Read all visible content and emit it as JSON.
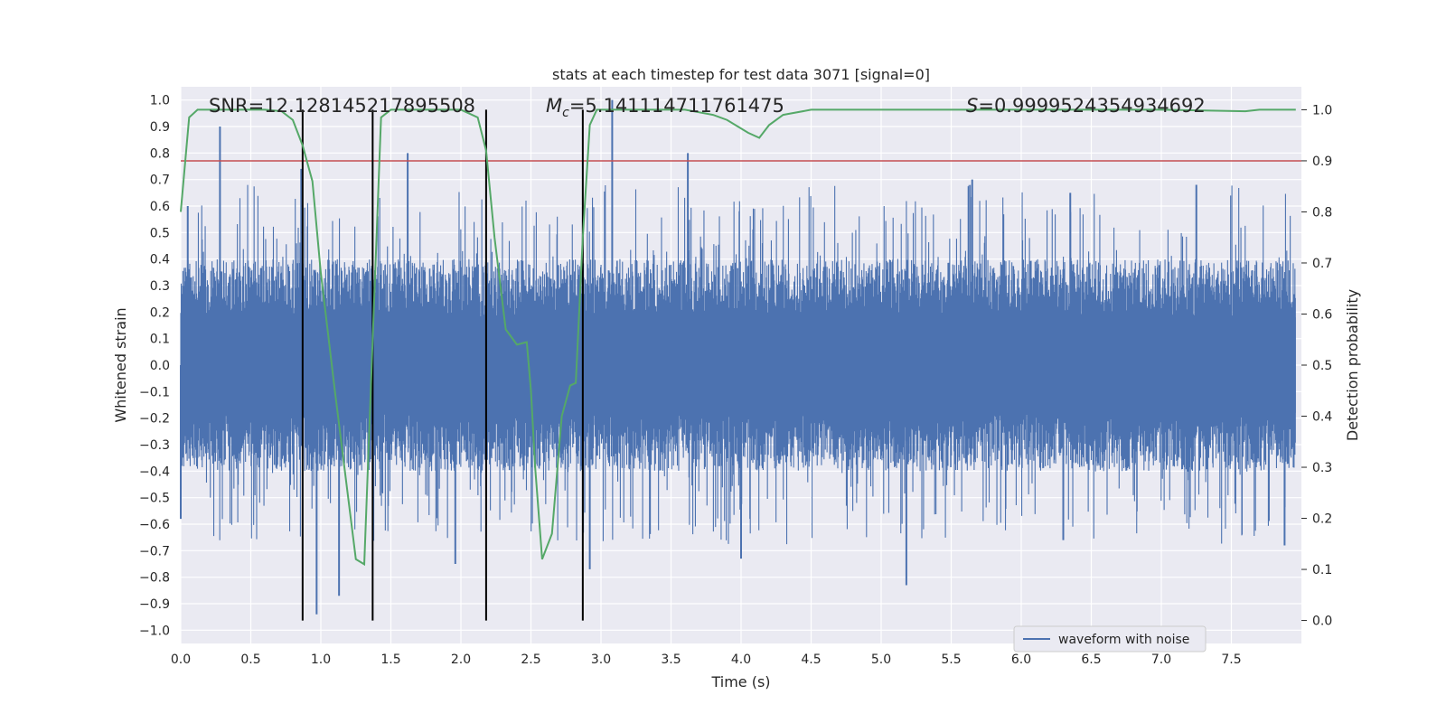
{
  "chart_data": {
    "type": "line",
    "title": "stats at each timestep for test data 3071 [signal=0]",
    "xlabel": "Time (s)",
    "ylabel": "Whitened strain",
    "y2label": "Detection probability",
    "xlim": [
      0.0,
      8.0
    ],
    "ylim": [
      -1.05,
      1.05
    ],
    "y2lim": [
      -0.045,
      1.045
    ],
    "x_ticks": [
      "0.0",
      "0.5",
      "1.0",
      "1.5",
      "2.0",
      "2.5",
      "3.0",
      "3.5",
      "4.0",
      "4.5",
      "5.0",
      "5.5",
      "6.0",
      "6.5",
      "7.0",
      "7.5"
    ],
    "y_ticks": [
      "1.0",
      "0.9",
      "0.8",
      "0.7",
      "0.6",
      "0.5",
      "0.4",
      "0.3",
      "0.2",
      "0.1",
      "0.0",
      "−0.1",
      "−0.2",
      "−0.3",
      "−0.4",
      "−0.5",
      "−0.6",
      "−0.7",
      "−0.8",
      "−0.9",
      "−1.0"
    ],
    "y2_ticks": [
      "1.0",
      "0.9",
      "0.8",
      "0.7",
      "0.6",
      "0.5",
      "0.4",
      "0.3",
      "0.2",
      "0.1",
      "0.0"
    ],
    "grid": true,
    "legend_placement": "lower-right",
    "annotations": {
      "snr": "SNR=12.128145217895508",
      "mc": "=5.141114711761475",
      "mc_symbol": "M",
      "mc_sub": "c",
      "s": "=0.9999524354934692",
      "s_symbol": "S"
    },
    "threshold_y2": 0.9,
    "vertical_lines_x": [
      0.87,
      1.37,
      2.18,
      2.87
    ],
    "waveform": {
      "name": "waveform with noise",
      "envelope_abs": 0.4,
      "peaks": [
        {
          "x": 0.28,
          "y": 0.9
        },
        {
          "x": 0.05,
          "y": 0.6
        },
        {
          "x": 0.86,
          "y": 0.74
        },
        {
          "x": 1.62,
          "y": 0.8
        },
        {
          "x": 3.08,
          "y": 1.0
        },
        {
          "x": 3.62,
          "y": 0.8
        },
        {
          "x": 5.65,
          "y": 0.7
        },
        {
          "x": 6.35,
          "y": 0.65
        },
        {
          "x": 7.25,
          "y": 0.68
        },
        {
          "x": 0.97,
          "y": -0.94
        },
        {
          "x": 1.13,
          "y": -0.87
        },
        {
          "x": 1.96,
          "y": -0.75
        },
        {
          "x": 2.92,
          "y": -0.77
        },
        {
          "x": 4.0,
          "y": -0.73
        },
        {
          "x": 5.18,
          "y": -0.83
        },
        {
          "x": 6.3,
          "y": -0.66
        },
        {
          "x": 7.88,
          "y": -0.68
        },
        {
          "x": 0.0,
          "y": -0.58
        }
      ]
    },
    "probability": {
      "x": [
        0.0,
        0.06,
        0.12,
        0.3,
        0.6,
        0.72,
        0.8,
        0.87,
        0.94,
        1.0,
        1.1,
        1.25,
        1.31,
        1.37,
        1.43,
        1.5,
        1.7,
        2.0,
        2.12,
        2.18,
        2.24,
        2.32,
        2.4,
        2.47,
        2.5,
        2.53,
        2.58,
        2.65,
        2.72,
        2.78,
        2.82,
        2.87,
        2.92,
        2.97,
        3.1,
        3.6,
        3.8,
        3.9,
        4.05,
        4.13,
        4.2,
        4.3,
        4.5,
        5.0,
        6.0,
        6.6,
        7.0,
        7.6,
        7.7,
        7.96
      ],
      "values": [
        0.8,
        0.985,
        1.0,
        1.0,
        1.0,
        0.997,
        0.98,
        0.93,
        0.86,
        0.68,
        0.45,
        0.12,
        0.11,
        0.55,
        0.985,
        1.0,
        1.0,
        1.0,
        0.985,
        0.92,
        0.75,
        0.57,
        0.54,
        0.545,
        0.45,
        0.3,
        0.12,
        0.17,
        0.4,
        0.46,
        0.465,
        0.75,
        0.97,
        1.0,
        1.0,
        1.0,
        0.99,
        0.98,
        0.955,
        0.945,
        0.97,
        0.99,
        1.0,
        1.0,
        1.0,
        1.0,
        1.0,
        0.997,
        1.0,
        1.0
      ]
    },
    "colors": {
      "waveform": "#4c72b0",
      "probability": "#55a868",
      "threshold": "#c44e52",
      "vlines": "#000000",
      "background": "#eaeaf2",
      "grid": "#ffffff"
    }
  }
}
